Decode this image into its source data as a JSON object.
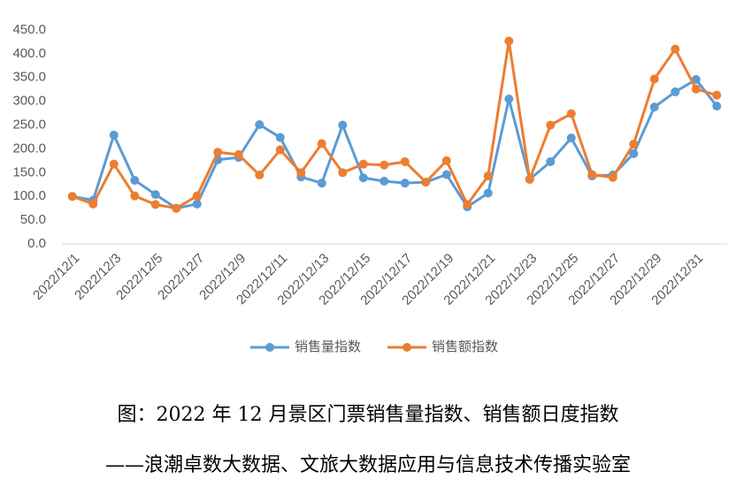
{
  "chart_data": {
    "type": "line",
    "categories": [
      "2022/12/1",
      null,
      "2022/12/3",
      null,
      "2022/12/5",
      null,
      "2022/12/7",
      null,
      "2022/12/9",
      null,
      "2022/12/11",
      null,
      "2022/12/13",
      null,
      "2022/12/15",
      null,
      "2022/12/17",
      null,
      "2022/12/19",
      null,
      "2022/12/21",
      null,
      "2022/12/23",
      null,
      "2022/12/25",
      null,
      "2022/12/27",
      null,
      "2022/12/29",
      null,
      "2022/12/31",
      null
    ],
    "series": [
      {
        "name": "销售量指数",
        "color": "#5b9bd5",
        "values": [
          100,
          92,
          229,
          134,
          104,
          75,
          84,
          177,
          182,
          251,
          224,
          141,
          128,
          250,
          139,
          132,
          128,
          130,
          146,
          78,
          107,
          305,
          136,
          173,
          223,
          143,
          145,
          190,
          288,
          320,
          346,
          290
        ]
      },
      {
        "name": "销售额指数",
        "color": "#ed7d31",
        "values": [
          100,
          84,
          168,
          101,
          83,
          75,
          101,
          193,
          188,
          145,
          198,
          150,
          211,
          150,
          168,
          166,
          173,
          130,
          175,
          83,
          143,
          427,
          136,
          250,
          274,
          146,
          140,
          210,
          347,
          410,
          326,
          313
        ]
      }
    ],
    "ylim": [
      0,
      450
    ],
    "yticks": [
      {
        "value": 0,
        "label": "0.0"
      },
      {
        "value": 50,
        "label": "50.0"
      },
      {
        "value": 100,
        "label": "100.0"
      },
      {
        "value": 150,
        "label": "150.0"
      },
      {
        "value": 200,
        "label": "200.0"
      },
      {
        "value": 250,
        "label": "250.0"
      },
      {
        "value": 300,
        "label": "300.0"
      },
      {
        "value": 350,
        "label": "350.0"
      },
      {
        "value": 400,
        "label": "400.0"
      },
      {
        "value": 450,
        "label": "450.0"
      }
    ],
    "grid": false,
    "legend": "bottom"
  },
  "caption": [
    "图：2022 年 12 月景区门票销售量指数、销售额日度指数",
    "——浪潮卓数大数据、文旅大数据应用与信息技术传播实验室"
  ]
}
